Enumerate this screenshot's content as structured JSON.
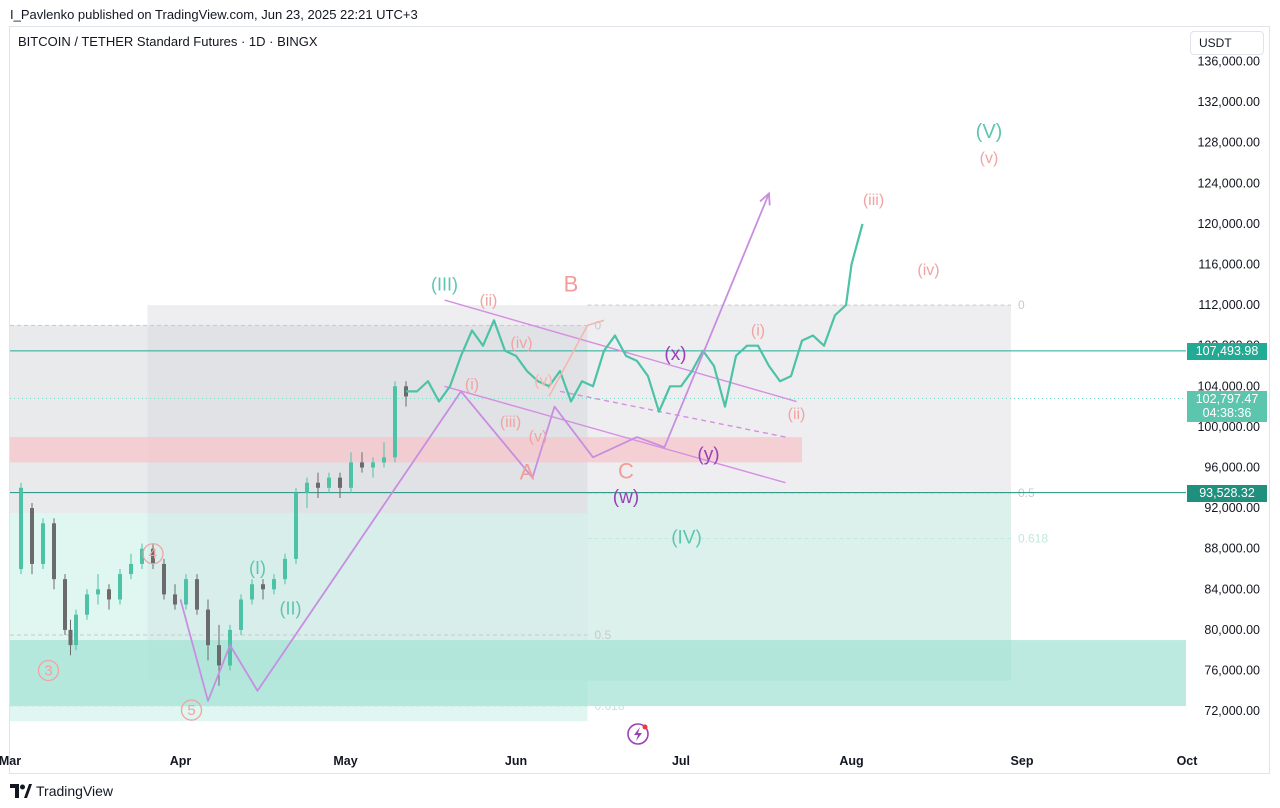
{
  "header": {
    "published": "I_Pavlenko published on TradingView.com, Jun 23, 2025 22:21 UTC+3"
  },
  "symbol": {
    "title": "BITCOIN / TETHER Standard Futures · 1D · BINGX"
  },
  "currency_button": "USDT",
  "footer": {
    "brand": "TradingView"
  },
  "colors": {
    "candle_up": "#4cc2a6",
    "candle_down": "#6b6b6b",
    "accent_teal": "#22ab94",
    "wave_teal": "#5ec5b0",
    "wave_salmon": "#f0a3a3",
    "wave_purple": "#9c3fb8",
    "path_purple": "#c88ee0",
    "support_zone": "#b8ebe0",
    "resistance_zone": "#f8d7da"
  },
  "price_tags": [
    {
      "id": "last-price-tag",
      "lines": [
        "107,493.98"
      ],
      "value": 107493.98,
      "color": "#22ab94"
    },
    {
      "id": "countdown-tag",
      "lines": [
        "102,797.47",
        "04:38:36"
      ],
      "value": 102797.47,
      "color": "#5cc5ad"
    },
    {
      "id": "support-line-tag",
      "lines": [
        "93,528.32"
      ],
      "value": 93528.32,
      "color": "#1f8f7e"
    }
  ],
  "chart_data": {
    "type": "candlestick",
    "y_axis": {
      "min": 72000,
      "max": 136000,
      "ticks": [
        "136,000.00",
        "132,000.00",
        "128,000.00",
        "124,000.00",
        "120,000.00",
        "116,000.00",
        "112,000.00",
        "108,000.00",
        "104,000.00",
        "100,000.00",
        "96,000.00",
        "92,000.00",
        "88,000.00",
        "84,000.00",
        "80,000.00",
        "76,000.00",
        "72,000.00"
      ]
    },
    "x_axis": {
      "ticks": [
        "Mar",
        "Apr",
        "May",
        "Jun",
        "Jul",
        "Aug",
        "Sep",
        "Oct"
      ],
      "tick_days": [
        0,
        31,
        61,
        92,
        122,
        153,
        184,
        214
      ]
    },
    "price_series": [
      [
        2,
        93000
      ],
      [
        4,
        86000
      ],
      [
        6,
        90000
      ],
      [
        8,
        85000
      ],
      [
        10,
        80000
      ],
      [
        11,
        77500
      ],
      [
        12,
        80500
      ],
      [
        14,
        83000
      ],
      [
        16,
        84000
      ],
      [
        18,
        83500
      ],
      [
        20,
        85000
      ],
      [
        22,
        86000
      ],
      [
        24,
        88500
      ],
      [
        26,
        87000
      ],
      [
        28,
        84000
      ],
      [
        30,
        82500
      ],
      [
        32,
        85000
      ],
      [
        34,
        82000
      ],
      [
        36,
        80000
      ],
      [
        37,
        78000
      ],
      [
        38,
        76000
      ],
      [
        40,
        80000
      ],
      [
        42,
        83000
      ],
      [
        44,
        84500
      ],
      [
        46,
        84000
      ],
      [
        48,
        85000
      ],
      [
        50,
        87000
      ],
      [
        52,
        93500
      ],
      [
        54,
        94500
      ],
      [
        56,
        94000
      ],
      [
        58,
        95000
      ],
      [
        60,
        94500
      ],
      [
        62,
        96500
      ],
      [
        64,
        97000
      ],
      [
        66,
        96500
      ],
      [
        68,
        98000
      ],
      [
        69,
        96500
      ],
      [
        70,
        104000
      ],
      [
        72,
        103500
      ],
      [
        74,
        103500
      ],
      [
        76,
        104500
      ],
      [
        78,
        102500
      ],
      [
        80,
        104000
      ],
      [
        82,
        107000
      ],
      [
        84,
        109500
      ],
      [
        86,
        108000
      ],
      [
        88,
        110500
      ],
      [
        90,
        107500
      ],
      [
        92,
        107000
      ],
      [
        94,
        105500
      ],
      [
        96,
        104500
      ],
      [
        98,
        104000
      ],
      [
        100,
        105500
      ],
      [
        102,
        102500
      ],
      [
        104,
        104500
      ],
      [
        106,
        104000
      ],
      [
        108,
        107500
      ],
      [
        110,
        109000
      ],
      [
        112,
        107000
      ],
      [
        114,
        106500
      ],
      [
        116,
        105000
      ],
      [
        118,
        101500
      ],
      [
        120,
        104000
      ],
      [
        122,
        104000
      ],
      [
        124,
        105500
      ],
      [
        126,
        107500
      ],
      [
        128,
        106000
      ],
      [
        130,
        102000
      ],
      [
        132,
        107000
      ],
      [
        134,
        108000
      ],
      [
        136,
        108000
      ],
      [
        138,
        106000
      ],
      [
        140,
        104500
      ],
      [
        142,
        105000
      ],
      [
        144,
        108500
      ],
      [
        146,
        109000
      ],
      [
        148,
        108000
      ],
      [
        150,
        111000
      ],
      [
        152,
        112000
      ],
      [
        153,
        116000
      ],
      [
        154,
        118000
      ],
      [
        155,
        120000
      ]
    ],
    "candles": [
      {
        "d": 2,
        "o": 86000,
        "h": 94500,
        "l": 85500,
        "c": 94000
      },
      {
        "d": 4,
        "o": 92000,
        "h": 92500,
        "l": 85500,
        "c": 86500
      },
      {
        "d": 6,
        "o": 86500,
        "h": 91000,
        "l": 86000,
        "c": 90500
      },
      {
        "d": 8,
        "o": 90500,
        "h": 91000,
        "l": 84000,
        "c": 85000
      },
      {
        "d": 10,
        "o": 85000,
        "h": 85500,
        "l": 79500,
        "c": 80000
      },
      {
        "d": 11,
        "o": 80000,
        "h": 81000,
        "l": 77500,
        "c": 78500
      },
      {
        "d": 12,
        "o": 78500,
        "h": 82000,
        "l": 78000,
        "c": 81500
      },
      {
        "d": 14,
        "o": 81500,
        "h": 84000,
        "l": 81000,
        "c": 83500
      },
      {
        "d": 16,
        "o": 83500,
        "h": 85500,
        "l": 82500,
        "c": 84000
      },
      {
        "d": 18,
        "o": 84000,
        "h": 84500,
        "l": 82000,
        "c": 83000
      },
      {
        "d": 20,
        "o": 83000,
        "h": 86000,
        "l": 82500,
        "c": 85500
      },
      {
        "d": 22,
        "o": 85500,
        "h": 87500,
        "l": 85000,
        "c": 86500
      },
      {
        "d": 24,
        "o": 86500,
        "h": 88500,
        "l": 86000,
        "c": 88000
      },
      {
        "d": 26,
        "o": 88000,
        "h": 88500,
        "l": 86000,
        "c": 86500
      },
      {
        "d": 28,
        "o": 86500,
        "h": 87000,
        "l": 83000,
        "c": 83500
      },
      {
        "d": 30,
        "o": 83500,
        "h": 84500,
        "l": 82000,
        "c": 82500
      },
      {
        "d": 32,
        "o": 82500,
        "h": 85500,
        "l": 82000,
        "c": 85000
      },
      {
        "d": 34,
        "o": 85000,
        "h": 85500,
        "l": 81500,
        "c": 82000
      },
      {
        "d": 36,
        "o": 82000,
        "h": 83000,
        "l": 77000,
        "c": 78500
      },
      {
        "d": 38,
        "o": 78500,
        "h": 80500,
        "l": 74500,
        "c": 76500
      },
      {
        "d": 40,
        "o": 76500,
        "h": 80500,
        "l": 76000,
        "c": 80000
      },
      {
        "d": 42,
        "o": 80000,
        "h": 83500,
        "l": 79500,
        "c": 83000
      },
      {
        "d": 44,
        "o": 83000,
        "h": 85000,
        "l": 82500,
        "c": 84500
      },
      {
        "d": 46,
        "o": 84500,
        "h": 85000,
        "l": 83000,
        "c": 84000
      },
      {
        "d": 48,
        "o": 84000,
        "h": 85500,
        "l": 83500,
        "c": 85000
      },
      {
        "d": 50,
        "o": 85000,
        "h": 87500,
        "l": 84500,
        "c": 87000
      },
      {
        "d": 52,
        "o": 87000,
        "h": 94000,
        "l": 86500,
        "c": 93500
      },
      {
        "d": 54,
        "o": 93500,
        "h": 95000,
        "l": 92000,
        "c": 94500
      },
      {
        "d": 56,
        "o": 94500,
        "h": 95500,
        "l": 93000,
        "c": 94000
      },
      {
        "d": 58,
        "o": 94000,
        "h": 95500,
        "l": 93500,
        "c": 95000
      },
      {
        "d": 60,
        "o": 95000,
        "h": 95500,
        "l": 93000,
        "c": 94000
      },
      {
        "d": 62,
        "o": 94000,
        "h": 97500,
        "l": 93500,
        "c": 96500
      },
      {
        "d": 64,
        "o": 96500,
        "h": 97500,
        "l": 95500,
        "c": 96000
      },
      {
        "d": 66,
        "o": 96000,
        "h": 97000,
        "l": 95000,
        "c": 96500
      },
      {
        "d": 68,
        "o": 96500,
        "h": 98500,
        "l": 96000,
        "c": 97000
      },
      {
        "d": 70,
        "o": 97000,
        "h": 104500,
        "l": 96500,
        "c": 104000
      },
      {
        "d": 72,
        "o": 104000,
        "h": 104500,
        "l": 102000,
        "c": 103000
      }
    ],
    "zones": [
      {
        "name": "grey-box-large",
        "d0": 25,
        "d1": 182,
        "p0": 112000,
        "p1": 75000,
        "fill": "#e2e3e8",
        "opacity": 0.6
      },
      {
        "name": "grey-box-left",
        "d0": 0,
        "d1": 105,
        "p0": 110000,
        "p1": 91500,
        "fill": "#d7d8dd",
        "opacity": 0.55
      },
      {
        "name": "resistance-zone",
        "d0": 0,
        "d1": 144,
        "p0": 99000,
        "p1": 96500,
        "fill": "#f5c6cb",
        "opacity": 0.75
      },
      {
        "name": "teal-box-bottom-left",
        "d0": 0,
        "d1": 105,
        "p0": 91500,
        "p1": 71000,
        "fill": "#c6efe4",
        "opacity": 0.55
      },
      {
        "name": "teal-box-right",
        "d0": 105,
        "d1": 182,
        "p0": 93500,
        "p1": 75000,
        "fill": "#c9f2e8",
        "opacity": 0.5
      },
      {
        "name": "support-zone-teal",
        "d0": 0,
        "d1": 216,
        "p0": 79000,
        "p1": 72500,
        "fill": "#a5e3d6",
        "opacity": 0.75
      }
    ],
    "fib_levels": [
      {
        "label": "0",
        "d0": 105,
        "d1": 182,
        "p": 112000,
        "color": "#c9c9c9"
      },
      {
        "label": "0.5",
        "d0": 105,
        "d1": 182,
        "p": 93500,
        "color": "#c9c9c9"
      },
      {
        "label": "0.618",
        "d0": 105,
        "d1": 182,
        "p": 89000,
        "color": "#c0e8de"
      },
      {
        "label": "0",
        "d0": 0,
        "d1": 105,
        "p": 110000,
        "color": "#c9c9c9"
      },
      {
        "label": "0.5",
        "d0": 0,
        "d1": 105,
        "p": 79500,
        "color": "#c9c9c9"
      },
      {
        "label": "0.618",
        "d0": 0,
        "d1": 105,
        "p": 72500,
        "color": "#c0e8de"
      }
    ],
    "lines": [
      {
        "name": "last-price-line",
        "p": 107493.98,
        "color": "#22ab94",
        "dash": false
      },
      {
        "name": "countdown-line",
        "p": 102797.47,
        "color": "#7ed6c4",
        "dash": true
      },
      {
        "name": "support-line",
        "p": 93528.32,
        "color": "#1f8f7e",
        "dash": false
      }
    ],
    "channel": [
      {
        "d0": 79,
        "p0": 112500,
        "d1": 143,
        "p1": 102500,
        "color": "#d58fe0"
      },
      {
        "d0": 79,
        "p0": 104000,
        "d1": 141,
        "p1": 94500,
        "color": "#d58fe0"
      },
      {
        "d0": 100,
        "p0": 103500,
        "d1": 141,
        "p1": 99000,
        "color": "#d58fe0",
        "dash": true
      }
    ],
    "projection_path": [
      [
        31,
        83000
      ],
      [
        36,
        73000
      ],
      [
        40,
        78500
      ],
      [
        45,
        74000
      ],
      [
        82,
        103500
      ],
      [
        95,
        95000
      ],
      [
        99,
        102000
      ],
      [
        106,
        97000
      ],
      [
        114,
        99000
      ],
      [
        119,
        98000
      ],
      [
        138,
        123000
      ]
    ],
    "small_path": [
      [
        98,
        103000
      ],
      [
        105,
        110000
      ],
      [
        108,
        110500
      ]
    ],
    "wave_labels": [
      {
        "text": "(III)",
        "d": 79,
        "p": 113900,
        "color": "#5ec5b0",
        "size": 18
      },
      {
        "text": "(I)",
        "d": 45,
        "p": 86000,
        "color": "#5ec5b0",
        "size": 18
      },
      {
        "text": "(II)",
        "d": 51,
        "p": 82000,
        "color": "#5ec5b0",
        "size": 18
      },
      {
        "text": "(IV)",
        "d": 123,
        "p": 89000,
        "color": "#5ec5b0",
        "size": 19
      },
      {
        "text": "(V)",
        "d": 178,
        "p": 129000,
        "color": "#5ec5b0",
        "size": 20
      },
      {
        "text": "(v)",
        "d": 178,
        "p": 126400,
        "color": "#f0a3a3",
        "size": 16
      },
      {
        "text": "(iii)",
        "d": 157,
        "p": 122300,
        "color": "#f0a3a3",
        "size": 16
      },
      {
        "text": "(iv)",
        "d": 167,
        "p": 115400,
        "color": "#f0a3a3",
        "size": 16
      },
      {
        "text": "(i)",
        "d": 136,
        "p": 109400,
        "color": "#f0a3a3",
        "size": 16
      },
      {
        "text": "(ii)",
        "d": 143,
        "p": 101200,
        "color": "#f0a3a3",
        "size": 16
      },
      {
        "text": "(ii)",
        "d": 87,
        "p": 112400,
        "color": "#f0a3a3",
        "size": 16
      },
      {
        "text": "(iv)",
        "d": 93,
        "p": 108200,
        "color": "#f0a3a3",
        "size": 16
      },
      {
        "text": "(i)",
        "d": 84,
        "p": 104100,
        "color": "#f0a3a3",
        "size": 16
      },
      {
        "text": "(iii)",
        "d": 91,
        "p": 100400,
        "color": "#f0a3a3",
        "size": 16
      },
      {
        "text": "(v)",
        "d": 96,
        "p": 99000,
        "color": "#f0a3a3",
        "size": 16
      },
      {
        "text": "(v)",
        "d": 97,
        "p": 104500,
        "color": "#f4b7b0",
        "size": 16
      },
      {
        "text": "B",
        "d": 102,
        "p": 113900,
        "color": "#f29d98",
        "size": 22
      },
      {
        "text": "A",
        "d": 94,
        "p": 95400,
        "color": "#f29d98",
        "size": 22
      },
      {
        "text": "C",
        "d": 112,
        "p": 95500,
        "color": "#f29d98",
        "size": 22
      },
      {
        "text": "(x)",
        "d": 121,
        "p": 107100,
        "color": "#9c3fb8",
        "size": 19
      },
      {
        "text": "(y)",
        "d": 127,
        "p": 97200,
        "color": "#9c3fb8",
        "size": 19
      },
      {
        "text": "(w)",
        "d": 112,
        "p": 93000,
        "color": "#9c3fb8",
        "size": 19
      }
    ],
    "circled_labels": [
      {
        "text": "4",
        "d": 26,
        "p": 87500,
        "color": "#f0a3a3"
      },
      {
        "text": "3",
        "d": 7,
        "p": 76000,
        "color": "#f0a3a3"
      },
      {
        "text": "5",
        "d": 33,
        "p": 72100,
        "color": "#f0a3a3"
      }
    ]
  }
}
